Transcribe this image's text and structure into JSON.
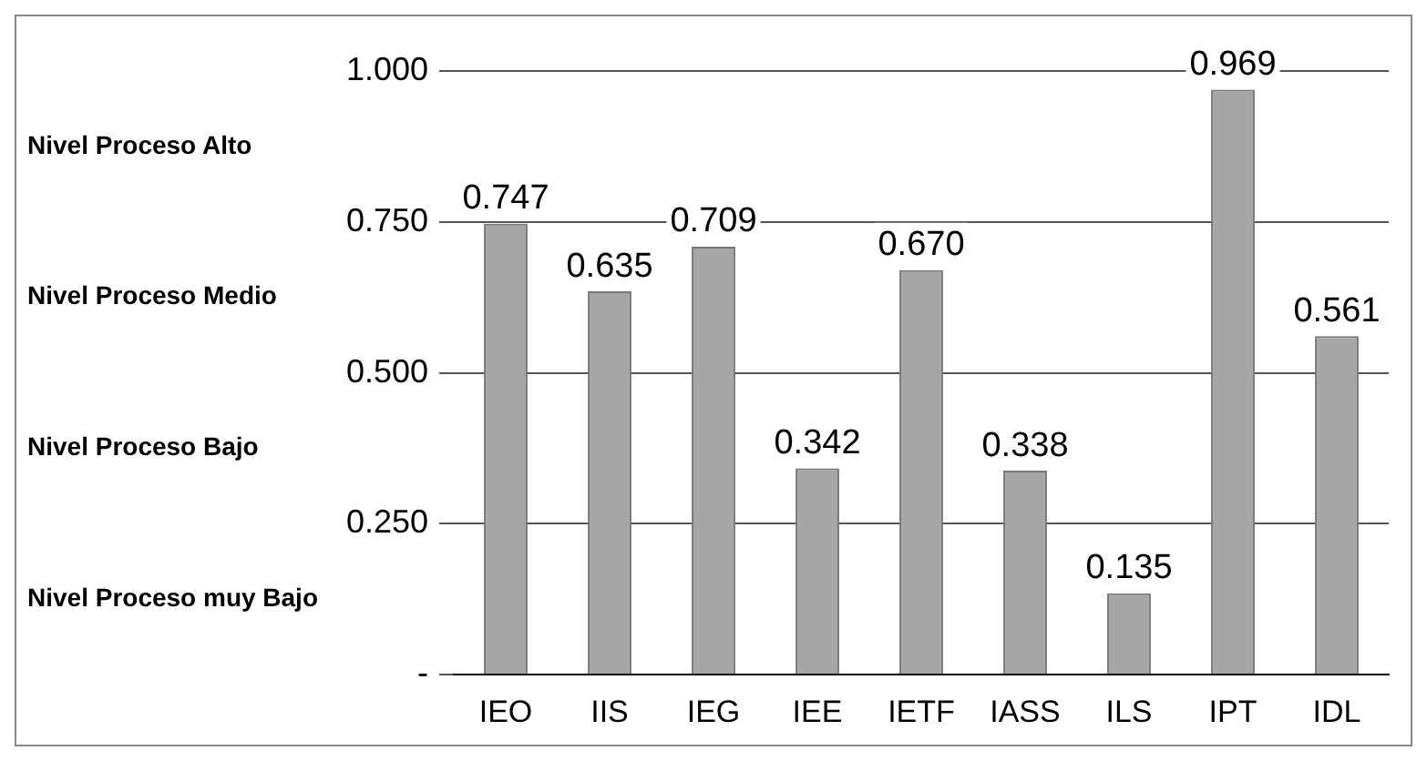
{
  "chart_data": {
    "type": "bar",
    "categories": [
      "IEO",
      "IIS",
      "IEG",
      "IEE",
      "IETF",
      "IASS",
      "ILS",
      "IPT",
      "IDL"
    ],
    "values": [
      0.747,
      0.635,
      0.709,
      0.342,
      0.67,
      0.338,
      0.135,
      0.969,
      0.561
    ],
    "value_labels": [
      "0.747",
      "0.635",
      "0.709",
      "0.342",
      "0.670",
      "0.338",
      "0.135",
      "0.969",
      "0.561"
    ],
    "color": "#a6a6a6",
    "ylim": [
      0,
      1
    ],
    "yticks": [
      {
        "value": 0,
        "label": "-"
      },
      {
        "value": 0.25,
        "label": "0.250"
      },
      {
        "value": 0.5,
        "label": "0.500"
      },
      {
        "value": 0.75,
        "label": "0.750"
      },
      {
        "value": 1,
        "label": "1.000"
      }
    ],
    "grid": "y",
    "annotations": [
      "Nivel Proceso Alto",
      "Nivel Proceso Medio",
      "Nivel Proceso Bajo",
      "Nivel Proceso muy Bajo"
    ]
  }
}
